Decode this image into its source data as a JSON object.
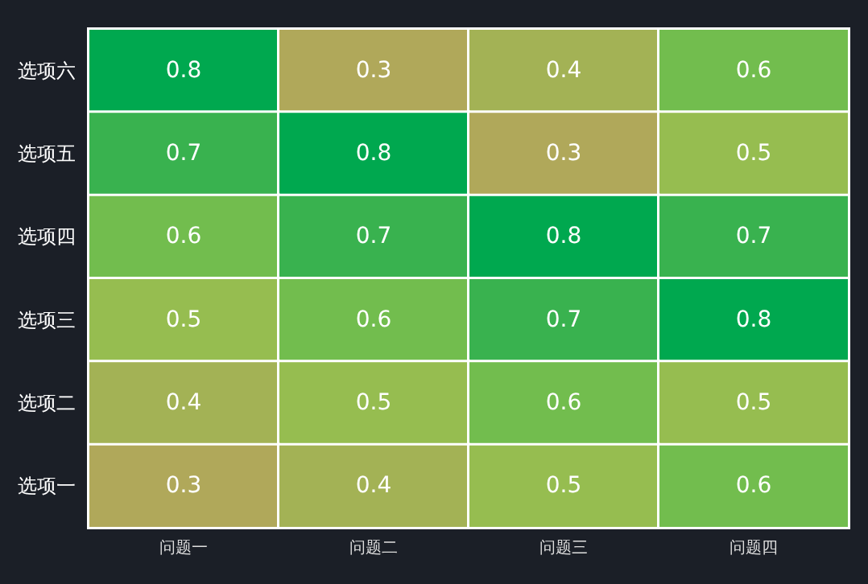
{
  "chart_data": {
    "type": "heatmap",
    "categories": [
      "问题一",
      "问题二",
      "问题三",
      "问题四"
    ],
    "y_categories": [
      "选项六",
      "选项五",
      "选项四",
      "选项三",
      "选项二",
      "选项一"
    ],
    "cells": [
      [
        0.8,
        0.3,
        0.4,
        0.6
      ],
      [
        0.7,
        0.8,
        0.3,
        0.5
      ],
      [
        0.6,
        0.7,
        0.8,
        0.7
      ],
      [
        0.5,
        0.6,
        0.7,
        0.8
      ],
      [
        0.4,
        0.5,
        0.6,
        0.5
      ],
      [
        0.3,
        0.4,
        0.5,
        0.6
      ]
    ],
    "data_labels": true
  }
}
